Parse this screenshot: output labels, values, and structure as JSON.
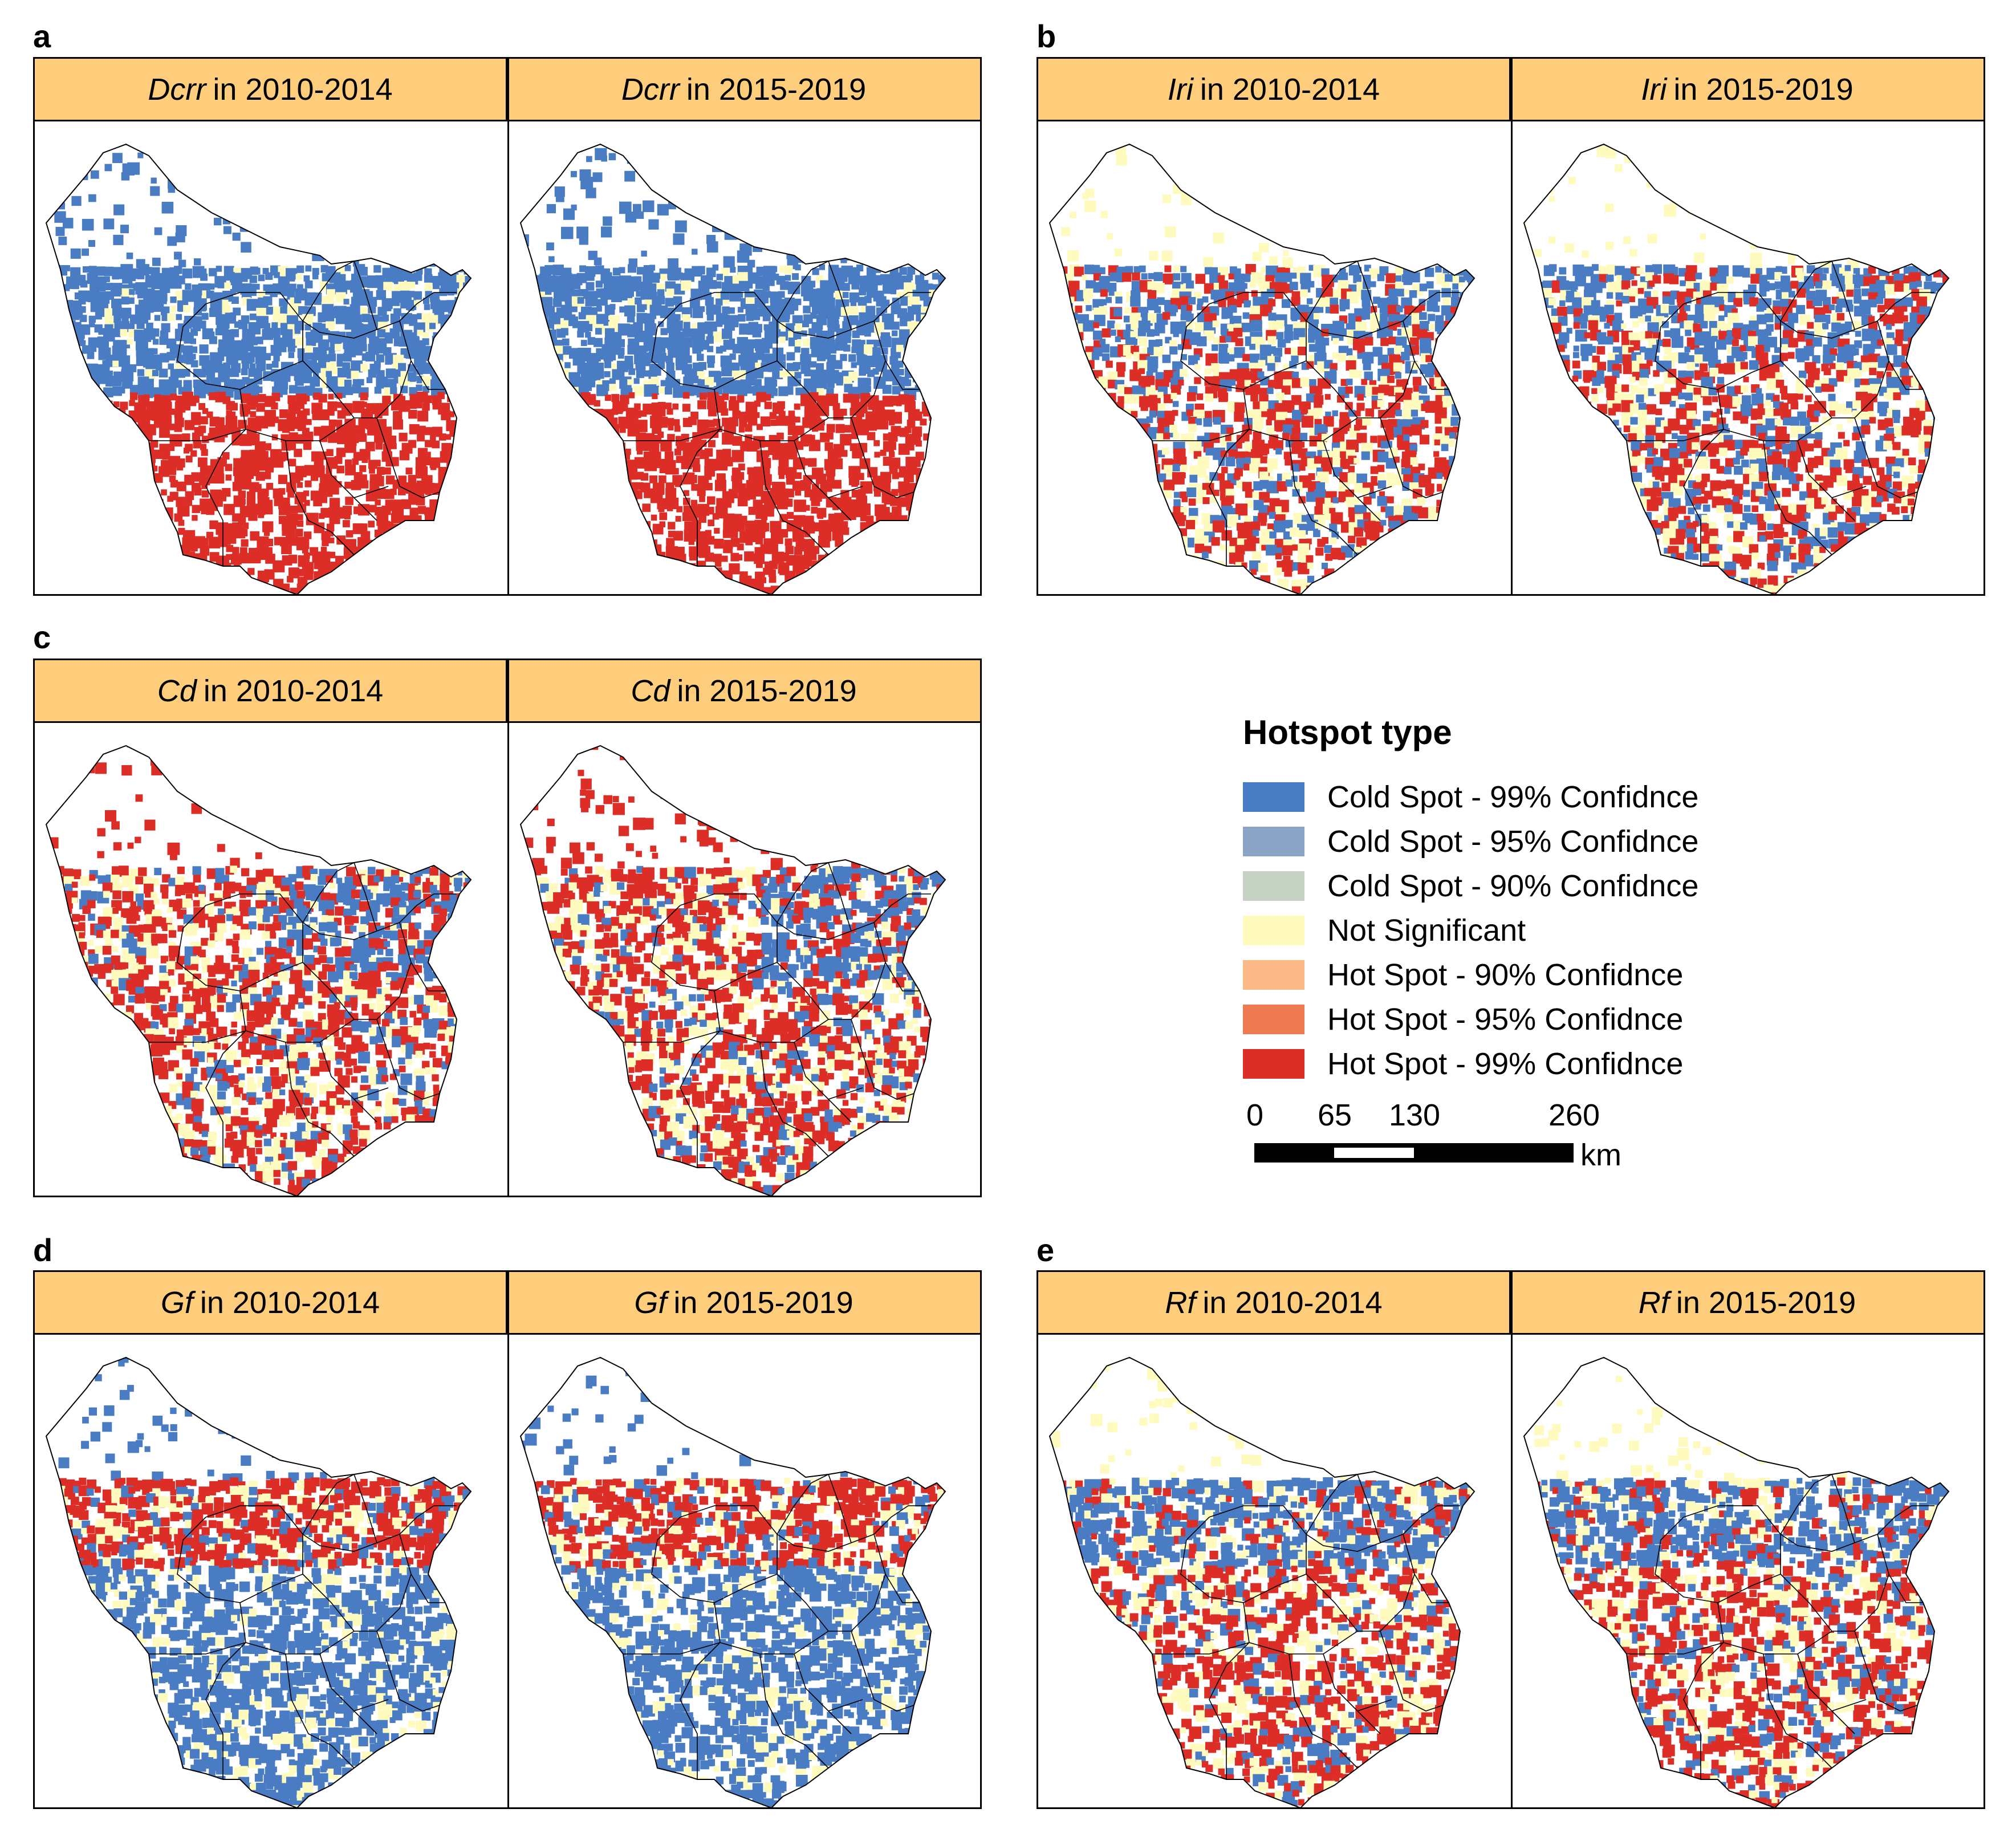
{
  "colors": {
    "cold99": "#4a7cc3",
    "cold95": "#8ba3c4",
    "cold90": "#c6d2c4",
    "notsig": "#fffbbe",
    "hot90": "#fbb987",
    "hot95": "#ee7a52",
    "hot99": "#dc2e26",
    "header_bg": "#fdcd7c"
  },
  "panels": [
    {
      "label": "a",
      "var": "Dcrr",
      "left_period": "in 2010-2014",
      "right_period": "in 2015-2019",
      "pattern": "dcrr"
    },
    {
      "label": "b",
      "var": "Iri",
      "left_period": "in 2010-2014",
      "right_period": "in 2015-2019",
      "pattern": "iri"
    },
    {
      "label": "c",
      "var": "Cd",
      "left_period": "in 2010-2014",
      "right_period": "in 2015-2019",
      "pattern": "cd"
    },
    {
      "label": "d",
      "var": "Gf",
      "left_period": "in 2010-2014",
      "right_period": "in 2015-2019",
      "pattern": "gf"
    },
    {
      "label": "e",
      "var": "Rf",
      "left_period": "in 2010-2014",
      "right_period": "in 2015-2019",
      "pattern": "rf"
    }
  ],
  "legend": {
    "title": "Hotspot type",
    "items": [
      {
        "label": "Cold Spot - 99% Confidnce",
        "color": "#4a7cc3"
      },
      {
        "label": "Cold Spot - 95% Confidnce",
        "color": "#8ba3c4"
      },
      {
        "label": "Cold Spot - 90% Confidnce",
        "color": "#c6d2c4"
      },
      {
        "label": "Not Significant",
        "color": "#fffbbe"
      },
      {
        "label": "Hot Spot - 90% Confidnce",
        "color": "#fbb987"
      },
      {
        "label": "Hot Spot - 95% Confidnce",
        "color": "#ee7a52"
      },
      {
        "label": "Hot Spot - 99% Confidnce",
        "color": "#dc2e26"
      }
    ]
  },
  "scale": {
    "ticks": [
      "0",
      "65",
      "130",
      "260"
    ],
    "tick_values": [
      0,
      65,
      130,
      260
    ],
    "unit": "km"
  }
}
